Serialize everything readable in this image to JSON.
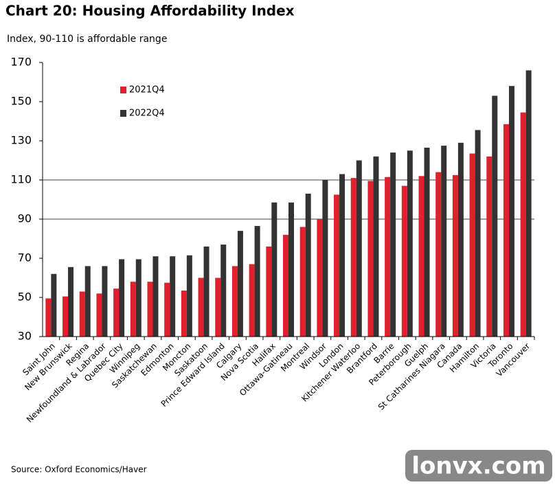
{
  "chart_data": {
    "type": "bar",
    "title": "Chart 20: Housing Affordability Index",
    "subtitle": "Index, 90-110 is affordable range",
    "source": "Source: Oxford Economics/Haver",
    "watermark": "lonvx.com",
    "categories": [
      "Saint John",
      "New Brunswick",
      "Regina",
      "Newfoundland & Labrador",
      "Quebec City",
      "Winnipeg",
      "Saskatchewan",
      "Edmonton",
      "Moncton",
      "Saskatoon",
      "Prince Edward Island",
      "Calgary",
      "Nova Scotia",
      "Halifax",
      "Ottawa-Gatineau",
      "Montreal",
      "Windsor",
      "London",
      "Kitchener Waterloo",
      "Brantford",
      "Barrie",
      "Peterborough",
      "Guelph",
      "St Catharines Niagara",
      "Canada",
      "Hamilton",
      "Victoria",
      "Toronto",
      "Vancouver"
    ],
    "series": [
      {
        "name": "2021Q4",
        "color": "#e0202c",
        "values": [
          49.5,
          50.5,
          53,
          52,
          54.5,
          58,
          58,
          57.5,
          53.5,
          60,
          60,
          66,
          67,
          76,
          82,
          86,
          90,
          102.5,
          111,
          109.5,
          111.5,
          107,
          112,
          114,
          112.5,
          123.5,
          122,
          138.5,
          144.5
        ]
      },
      {
        "name": "2022Q4",
        "color": "#333333",
        "values": [
          62,
          65.5,
          66,
          66,
          69.5,
          69.5,
          71,
          71,
          71.5,
          76,
          77,
          84,
          86.5,
          98.5,
          98.5,
          103,
          110,
          113,
          120,
          122,
          124,
          125,
          126.5,
          127.5,
          129,
          135.5,
          153,
          158,
          166
        ]
      }
    ],
    "ylim": [
      30,
      170
    ],
    "yticks": [
      30,
      50,
      70,
      90,
      110,
      130,
      150,
      170
    ],
    "hlines": [
      90,
      110
    ]
  }
}
